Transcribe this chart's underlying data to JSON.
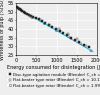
{
  "xlabel": "Energy consumed for disintegration (J.s)",
  "ylabel": "Whiteness of pulp (%ISO)",
  "xlim": [
    0,
    2000
  ],
  "ylim": [
    25,
    55
  ],
  "yticks": [
    25,
    30,
    35,
    40,
    45,
    50,
    55
  ],
  "xticks": [
    0,
    500,
    1000,
    1500,
    2000
  ],
  "trend_color": "#00ccff",
  "trend_x": [
    0,
    1900
  ],
  "trend_y": [
    52.5,
    27.0
  ],
  "series": [
    {
      "label": "Disc-type agitation module (Blender) C_ch = 10.1%",
      "marker": "s",
      "color": "#222222",
      "filled": true,
      "points": [
        [
          30,
          52.5
        ],
        [
          60,
          52.0
        ],
        [
          80,
          51.5
        ],
        [
          100,
          51.2
        ],
        [
          130,
          50.8
        ],
        [
          160,
          50.3
        ],
        [
          190,
          49.8
        ],
        [
          220,
          49.3
        ],
        [
          270,
          48.8
        ],
        [
          320,
          48.2
        ],
        [
          380,
          47.5
        ],
        [
          430,
          46.8
        ],
        [
          490,
          46.2
        ],
        [
          560,
          45.5
        ],
        [
          640,
          44.5
        ],
        [
          720,
          43.5
        ],
        [
          810,
          42.3
        ],
        [
          900,
          41.2
        ],
        [
          990,
          40.0
        ],
        [
          1080,
          38.8
        ],
        [
          1170,
          37.5
        ],
        [
          1260,
          36.3
        ],
        [
          1360,
          35.0
        ],
        [
          1460,
          33.8
        ],
        [
          1560,
          32.5
        ],
        [
          1680,
          31.0
        ],
        [
          1800,
          29.5
        ]
      ]
    },
    {
      "label": "Flat-beater type rotor (Blender) C_ch = 10.1%",
      "marker": "s",
      "color": "#555555",
      "filled": false,
      "points": [
        [
          350,
          47.5
        ],
        [
          600,
          45.0
        ],
        [
          820,
          42.5
        ],
        [
          1050,
          40.0
        ],
        [
          1280,
          37.2
        ],
        [
          1500,
          34.5
        ],
        [
          1720,
          30.5
        ]
      ]
    },
    {
      "label": "Flat-beater type rotor (Blender) C_ch = 1.9%",
      "marker": "o",
      "color": "#555555",
      "filled": false,
      "points": [
        [
          400,
          46.5
        ],
        [
          700,
          43.0
        ],
        [
          1000,
          39.0
        ],
        [
          1300,
          35.5
        ],
        [
          1600,
          31.5
        ],
        [
          1850,
          27.5
        ]
      ]
    }
  ],
  "background_color": "#eeeeee",
  "grid_color": "#ffffff",
  "font_size": 3.5,
  "legend_fontsize": 2.8
}
